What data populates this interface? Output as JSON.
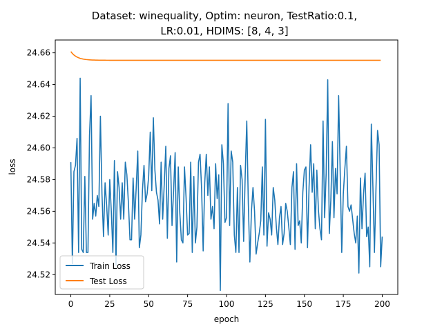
{
  "chart_data": {
    "type": "line",
    "title_line1": "Dataset: winequality, Optim: neuron, TestRatio:0.1,",
    "title_line2": "LR:0.01, HDIMS: [8, 4, 3]",
    "xlabel": "epoch",
    "ylabel": "loss",
    "xlim": [
      -10,
      210
    ],
    "ylim": [
      24.5075,
      24.6681
    ],
    "xticks": [
      0,
      25,
      50,
      75,
      100,
      125,
      150,
      175,
      200
    ],
    "yticks": [
      24.52,
      24.54,
      24.56,
      24.58,
      24.6,
      24.62,
      24.64,
      24.66
    ],
    "grid": false,
    "legend_position": "lower-left",
    "series": [
      {
        "name": "Train Loss",
        "color": "#1f77b4",
        "x_start": 0,
        "x_step": 1,
        "values": [
          24.591,
          24.527,
          24.585,
          24.589,
          24.606,
          24.534,
          24.644,
          24.536,
          24.534,
          24.582,
          24.534,
          24.534,
          24.608,
          24.633,
          24.555,
          24.565,
          24.557,
          24.57,
          24.563,
          24.62,
          24.571,
          24.544,
          24.578,
          24.564,
          24.545,
          24.58,
          24.56,
          24.534,
          24.592,
          24.526,
          24.585,
          24.575,
          24.555,
          24.578,
          24.555,
          24.591,
          24.583,
          24.565,
          24.542,
          24.542,
          24.581,
          24.555,
          24.575,
          24.598,
          24.537,
          24.545,
          24.573,
          24.589,
          24.566,
          24.571,
          24.582,
          24.61,
          24.573,
          24.619,
          24.586,
          24.572,
          24.567,
          24.552,
          24.591,
          24.555,
          24.577,
          24.601,
          24.543,
          24.587,
          24.595,
          24.551,
          24.573,
          24.597,
          24.528,
          24.588,
          24.559,
          24.542,
          24.54,
          24.588,
          24.569,
          24.545,
          24.546,
          24.591,
          24.534,
          24.582,
          24.54,
          24.55,
          24.591,
          24.596,
          24.574,
          24.535,
          24.578,
          24.596,
          24.57,
          24.588,
          24.555,
          24.563,
          24.549,
          24.59,
          24.568,
          24.583,
          24.51,
          24.602,
          24.59,
          24.553,
          24.556,
          24.628,
          24.551,
          24.598,
          24.591,
          24.545,
          24.534,
          24.575,
          24.534,
          24.589,
          24.58,
          24.541,
          24.583,
          24.617,
          24.565,
          24.528,
          24.56,
          24.575,
          24.56,
          24.533,
          24.54,
          24.546,
          24.554,
          24.588,
          24.545,
          24.618,
          24.538,
          24.559,
          24.555,
          24.545,
          24.575,
          24.567,
          24.55,
          24.539,
          24.556,
          24.563,
          24.539,
          24.546,
          24.565,
          24.56,
          24.55,
          24.539,
          24.575,
          24.585,
          24.536,
          24.59,
          24.551,
          24.554,
          24.54,
          24.572,
          24.586,
          24.588,
          24.537,
          24.575,
          24.602,
          24.572,
          24.59,
          24.549,
          24.586,
          24.561,
          24.549,
          24.542,
          24.617,
          24.556,
          24.584,
          24.643,
          24.546,
          24.567,
          24.604,
          24.556,
          24.587,
          24.571,
          24.633,
          24.585,
          24.534,
          24.571,
          24.587,
          24.601,
          24.563,
          24.56,
          24.564,
          24.555,
          24.546,
          24.54,
          24.557,
          24.521,
          24.581,
          24.549,
          24.571,
          24.584,
          24.544,
          24.55,
          24.525,
          24.615,
          24.576,
          24.534,
          24.575,
          24.611,
          24.602,
          24.525,
          24.544
        ]
      },
      {
        "name": "Test Loss",
        "color": "#ff7f0e",
        "x_start": 0,
        "x_step": 1,
        "values_formula": "exponential_decay",
        "start": 24.6608,
        "plateau": 24.6553,
        "length": 200
      }
    ]
  },
  "legend": {
    "items": [
      {
        "label": "Train Loss",
        "color": "#1f77b4"
      },
      {
        "label": "Test Loss",
        "color": "#ff7f0e"
      }
    ]
  }
}
